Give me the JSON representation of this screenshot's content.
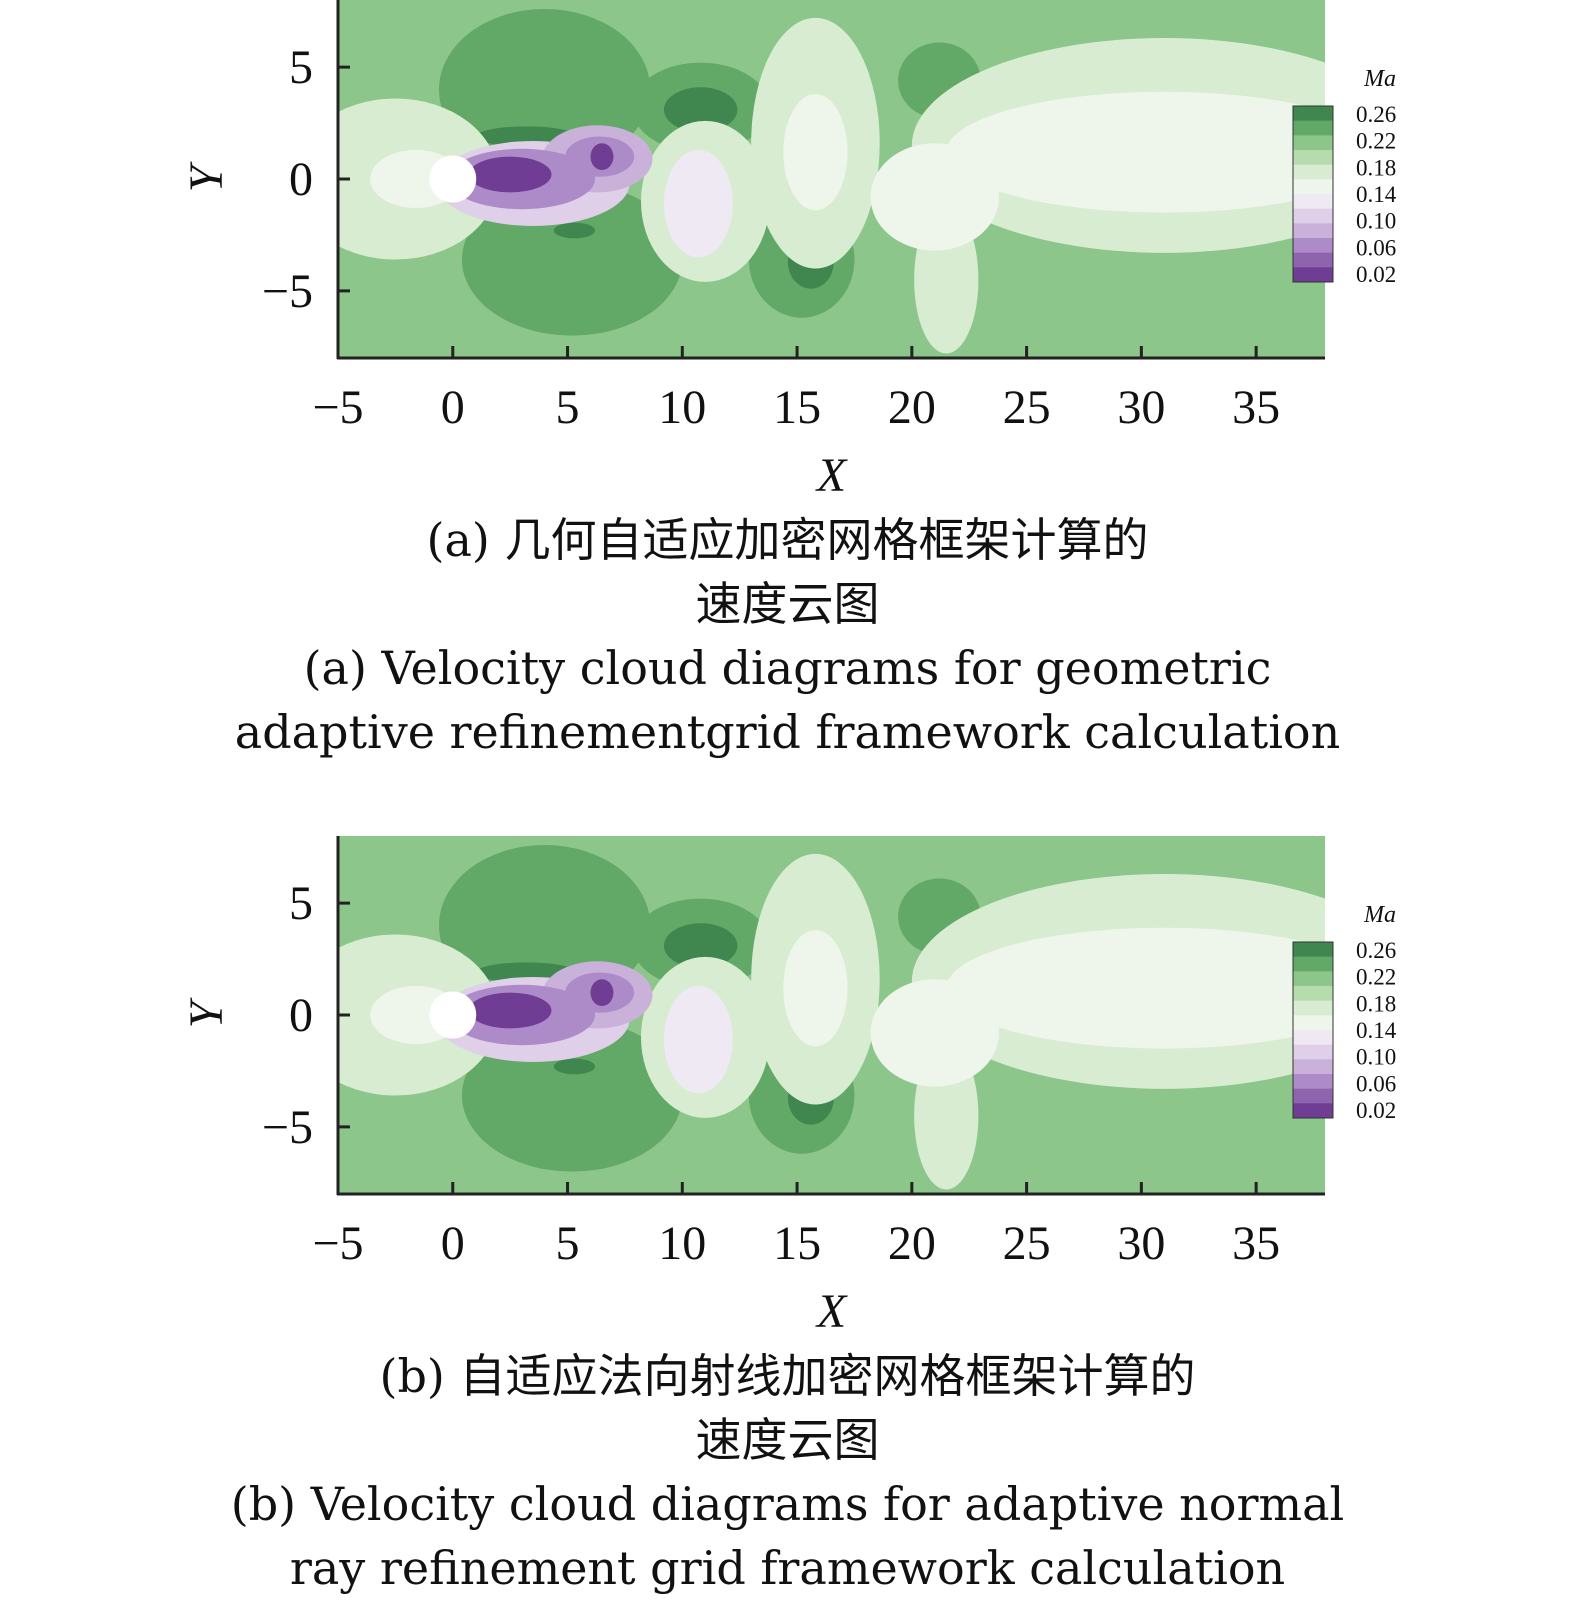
{
  "colors": {
    "bands": [
      "#6f3d93",
      "#8e64ae",
      "#ad8bc8",
      "#c9b1da",
      "#dfcfe9",
      "#efe9f3",
      "#eef5ea",
      "#d8ecd1",
      "#b6dcae",
      "#8dc68a",
      "#62a866",
      "#3f874e"
    ]
  },
  "legend": {
    "title": "Ma",
    "labels": [
      "0.26",
      "0.22",
      "0.18",
      "0.14",
      "0.10",
      "0.06",
      "0.02"
    ]
  },
  "chart_data": [
    {
      "type": "heatmap",
      "title": "",
      "xlabel": "X",
      "ylabel": "Y",
      "xlim": [
        -5,
        38
      ],
      "ylim": [
        -8,
        8
      ],
      "x_ticks": [
        "−5",
        "0",
        "5",
        "10",
        "15",
        "20",
        "25",
        "30",
        "35"
      ],
      "y_ticks": [
        "5",
        "0",
        "−5"
      ],
      "colorbar_label": "Ma",
      "colorbar_ticks": [
        0.26,
        0.22,
        0.18,
        0.14,
        0.1,
        0.06,
        0.02
      ],
      "color_range": [
        0.02,
        0.28
      ],
      "freestream_value": 0.22,
      "obstacle": {
        "shape": "circle",
        "center": [
          0,
          0
        ],
        "diameter": 2
      },
      "regions": [
        {
          "x": 4,
          "y": 4,
          "rx": 4.6,
          "ry": 3.6,
          "value": 0.255
        },
        {
          "x": 3.2,
          "y": 1.9,
          "rx": 2.2,
          "ry": 0.45,
          "value": 0.285
        },
        {
          "x": 5.2,
          "y": -3.6,
          "rx": 4.8,
          "ry": 3.4,
          "value": 0.255
        },
        {
          "x": 5.3,
          "y": -2.3,
          "rx": 0.9,
          "ry": 0.35,
          "value": 0.285
        },
        {
          "x": 10.8,
          "y": 3.2,
          "rx": 3.0,
          "ry": 2.0,
          "value": 0.25
        },
        {
          "x": 10.8,
          "y": 3.1,
          "rx": 1.6,
          "ry": 1.0,
          "value": 0.285
        },
        {
          "x": 15.2,
          "y": -3.6,
          "rx": 2.3,
          "ry": 2.6,
          "value": 0.255
        },
        {
          "x": 15.6,
          "y": -3.7,
          "rx": 1.0,
          "ry": 1.2,
          "value": 0.285
        },
        {
          "x": 21.2,
          "y": 4.4,
          "rx": 1.8,
          "ry": 1.7,
          "value": 0.25
        },
        {
          "x": -2.5,
          "y": 0,
          "rx": 4.5,
          "ry": 3.6,
          "value": 0.19
        },
        {
          "x": 11,
          "y": -1,
          "rx": 2.8,
          "ry": 3.6,
          "value": 0.19
        },
        {
          "x": 15.8,
          "y": 1.6,
          "rx": 2.8,
          "ry": 5.6,
          "value": 0.19
        },
        {
          "x": 31,
          "y": 1.5,
          "rx": 11,
          "ry": 4.8,
          "value": 0.19
        },
        {
          "x": 21.5,
          "y": -4.5,
          "rx": 1.4,
          "ry": 3.3,
          "value": 0.19
        },
        {
          "x": 31,
          "y": 1.2,
          "rx": 9.5,
          "ry": 2.7,
          "value": 0.16
        },
        {
          "x": 21,
          "y": -0.8,
          "rx": 2.8,
          "ry": 2.4,
          "value": 0.155
        },
        {
          "x": 15.8,
          "y": 1.2,
          "rx": 1.4,
          "ry": 2.6,
          "value": 0.155
        },
        {
          "x": 10.7,
          "y": -1.1,
          "rx": 1.5,
          "ry": 2.4,
          "value": 0.14
        },
        {
          "x": -1.6,
          "y": 0,
          "rx": 2.0,
          "ry": 1.3,
          "value": 0.16
        },
        {
          "x": 3.5,
          "y": -0.2,
          "rx": 4.2,
          "ry": 1.9,
          "value": 0.11
        },
        {
          "x": 6.3,
          "y": 0.9,
          "rx": 2.4,
          "ry": 1.5,
          "value": 0.095
        },
        {
          "x": 3,
          "y": 0,
          "rx": 3.2,
          "ry": 1.35,
          "value": 0.065
        },
        {
          "x": 6.4,
          "y": 1.0,
          "rx": 1.5,
          "ry": 0.9,
          "value": 0.065
        },
        {
          "x": 2.5,
          "y": 0.2,
          "rx": 1.8,
          "ry": 0.8,
          "value": 0.035
        },
        {
          "x": 6.5,
          "y": 1.0,
          "rx": 0.5,
          "ry": 0.6,
          "value": 0.035
        }
      ]
    },
    {
      "type": "heatmap",
      "title": "",
      "xlabel": "X",
      "ylabel": "Y",
      "xlim": [
        -5,
        38
      ],
      "ylim": [
        -8,
        8
      ],
      "x_ticks": [
        "−5",
        "0",
        "5",
        "10",
        "15",
        "20",
        "25",
        "30",
        "35"
      ],
      "y_ticks": [
        "5",
        "0",
        "−5"
      ],
      "colorbar_label": "Ma",
      "colorbar_ticks": [
        0.26,
        0.22,
        0.18,
        0.14,
        0.1,
        0.06,
        0.02
      ],
      "color_range": [
        0.02,
        0.28
      ],
      "freestream_value": 0.22,
      "obstacle": {
        "shape": "circle",
        "center": [
          0,
          0
        ],
        "diameter": 2
      },
      "regions": [
        {
          "x": 4,
          "y": 4,
          "rx": 4.6,
          "ry": 3.6,
          "value": 0.255
        },
        {
          "x": 3.2,
          "y": 1.9,
          "rx": 2.2,
          "ry": 0.45,
          "value": 0.285
        },
        {
          "x": 5.2,
          "y": -3.6,
          "rx": 4.8,
          "ry": 3.4,
          "value": 0.255
        },
        {
          "x": 5.3,
          "y": -2.3,
          "rx": 0.9,
          "ry": 0.35,
          "value": 0.285
        },
        {
          "x": 10.8,
          "y": 3.2,
          "rx": 3.0,
          "ry": 2.0,
          "value": 0.25
        },
        {
          "x": 10.8,
          "y": 3.1,
          "rx": 1.6,
          "ry": 1.0,
          "value": 0.285
        },
        {
          "x": 15.2,
          "y": -3.6,
          "rx": 2.3,
          "ry": 2.6,
          "value": 0.255
        },
        {
          "x": 15.6,
          "y": -3.7,
          "rx": 1.0,
          "ry": 1.2,
          "value": 0.285
        },
        {
          "x": 21.2,
          "y": 4.4,
          "rx": 1.8,
          "ry": 1.7,
          "value": 0.25
        },
        {
          "x": -2.5,
          "y": 0,
          "rx": 4.5,
          "ry": 3.6,
          "value": 0.19
        },
        {
          "x": 11,
          "y": -1,
          "rx": 2.8,
          "ry": 3.6,
          "value": 0.19
        },
        {
          "x": 15.8,
          "y": 1.6,
          "rx": 2.8,
          "ry": 5.6,
          "value": 0.19
        },
        {
          "x": 31,
          "y": 1.5,
          "rx": 11,
          "ry": 4.8,
          "value": 0.19
        },
        {
          "x": 21.5,
          "y": -4.5,
          "rx": 1.4,
          "ry": 3.3,
          "value": 0.19
        },
        {
          "x": 31,
          "y": 1.2,
          "rx": 9.5,
          "ry": 2.7,
          "value": 0.16
        },
        {
          "x": 21,
          "y": -0.8,
          "rx": 2.8,
          "ry": 2.4,
          "value": 0.155
        },
        {
          "x": 15.8,
          "y": 1.2,
          "rx": 1.4,
          "ry": 2.6,
          "value": 0.155
        },
        {
          "x": 10.7,
          "y": -1.1,
          "rx": 1.5,
          "ry": 2.4,
          "value": 0.14
        },
        {
          "x": -1.6,
          "y": 0,
          "rx": 2.0,
          "ry": 1.3,
          "value": 0.16
        },
        {
          "x": 3.5,
          "y": -0.2,
          "rx": 4.2,
          "ry": 1.9,
          "value": 0.11
        },
        {
          "x": 6.3,
          "y": 0.9,
          "rx": 2.4,
          "ry": 1.5,
          "value": 0.095
        },
        {
          "x": 3,
          "y": 0,
          "rx": 3.2,
          "ry": 1.35,
          "value": 0.065
        },
        {
          "x": 6.4,
          "y": 1.0,
          "rx": 1.5,
          "ry": 0.9,
          "value": 0.065
        },
        {
          "x": 2.5,
          "y": 0.2,
          "rx": 1.8,
          "ry": 0.8,
          "value": 0.035
        },
        {
          "x": 6.5,
          "y": 1.0,
          "rx": 0.5,
          "ry": 0.6,
          "value": 0.035
        }
      ]
    }
  ],
  "captions": [
    {
      "zh_line1": "(a) 几何自适应加密网格框架计算的",
      "zh_line2": "速度云图",
      "en_line1": "(a) Velocity cloud diagrams for geometric",
      "en_line2": "adaptive refinementgrid framework calculation"
    },
    {
      "zh_line1": "(b) 自适应法向射线加密网格框架计算的",
      "zh_line2": "速度云图",
      "en_line1": "(b) Velocity cloud diagrams for adaptive normal",
      "en_line2": "ray refinement grid framework calculation"
    }
  ]
}
